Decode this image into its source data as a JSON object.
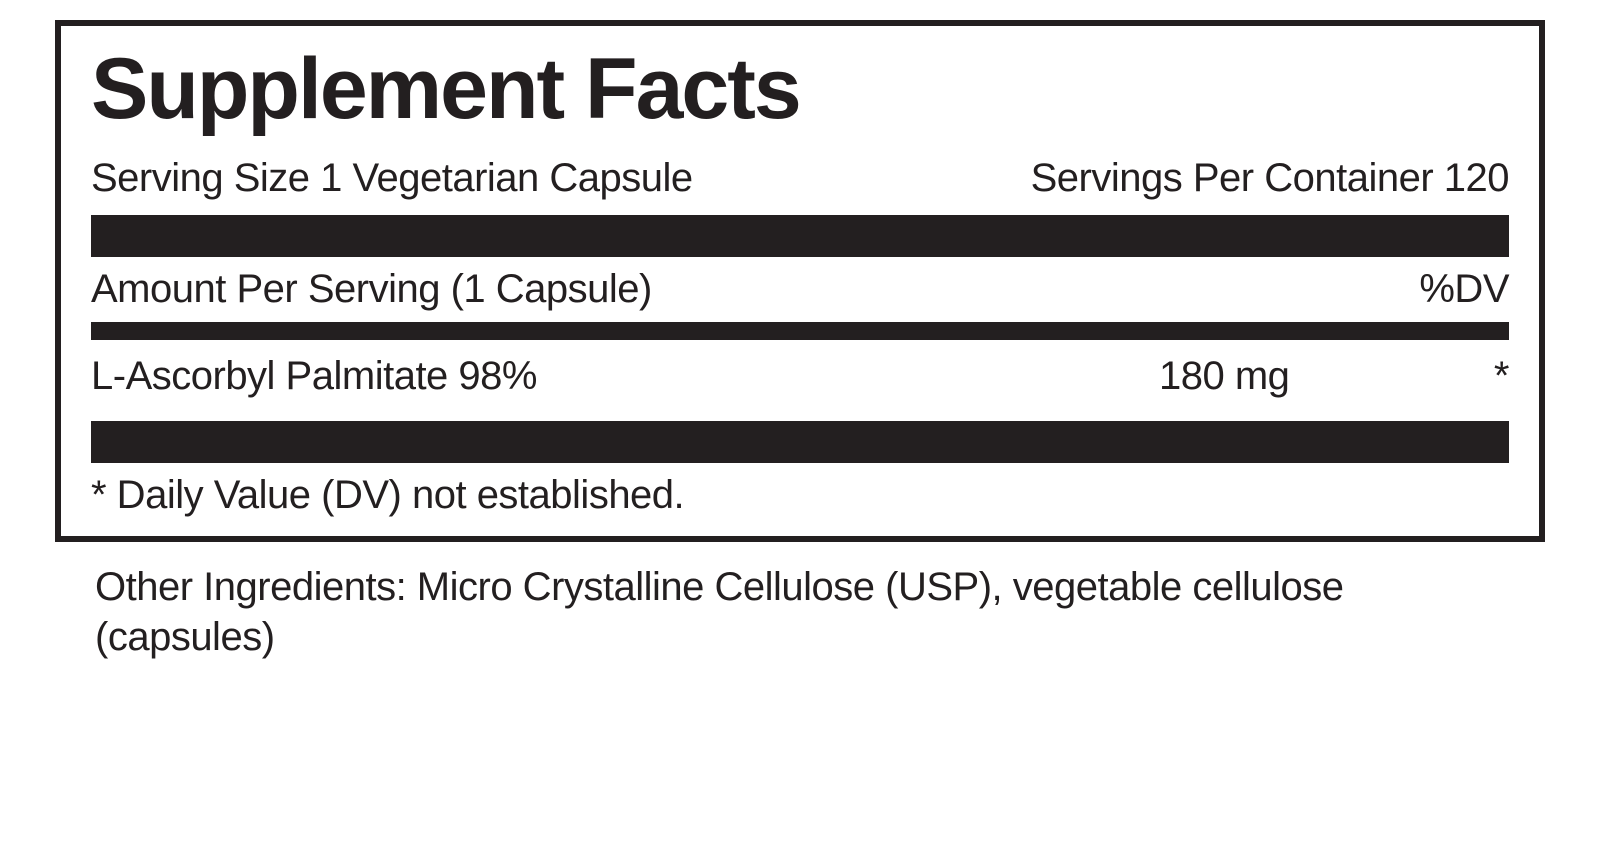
{
  "panel": {
    "title": "Supplement Facts",
    "serving_size_label": "Serving Size 1 Vegetarian Capsule",
    "servings_per_container_label": "Servings Per Container 120",
    "amount_per_serving_label": "Amount Per Serving (1 Capsule)",
    "dv_header": "%DV",
    "ingredients": [
      {
        "name": "L-Ascorbyl Palmitate 98%",
        "amount": "180 mg",
        "dv": "*"
      }
    ],
    "footnote": "* Daily Value (DV) not established.",
    "other_ingredients": "Other Ingredients: Micro Crystalline Cellulose (USP), vegetable cellulose (capsules)"
  },
  "styling": {
    "border_color": "#231f20",
    "text_color": "#231f20",
    "background_color": "#ffffff",
    "title_fontsize": 86,
    "body_fontsize": 40,
    "border_width": 6,
    "thick_bar_height": 42,
    "thin_bar_height": 18
  }
}
